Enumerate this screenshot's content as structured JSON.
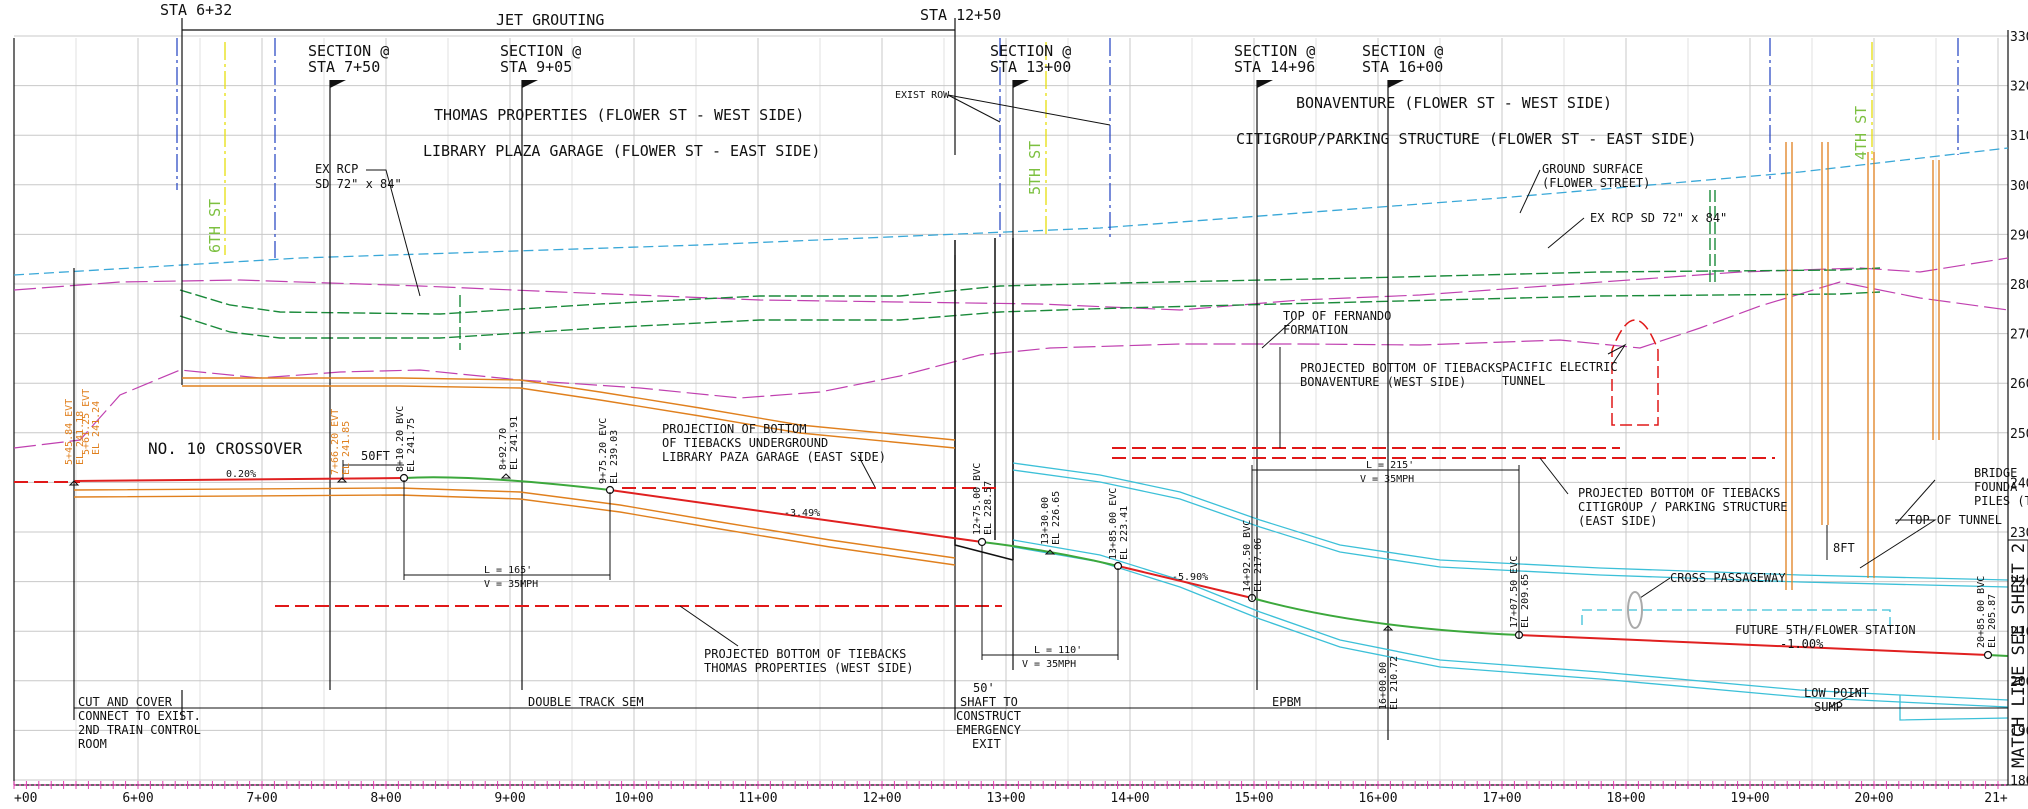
{
  "stations": {
    "tick_labels": [
      "+00",
      "6+00",
      "7+00",
      "8+00",
      "9+00",
      "10+00",
      "11+00",
      "12+00",
      "13+00",
      "14+00",
      "15+00",
      "16+00",
      "17+00",
      "18+00",
      "19+00",
      "20+00",
      "21+"
    ],
    "elevation_labels": [
      "330",
      "320",
      "310",
      "300",
      "290",
      "280",
      "270",
      "260",
      "250",
      "240",
      "230",
      "220",
      "210",
      "200",
      "190",
      "180"
    ]
  },
  "top_labels": {
    "sta_632": "STA 6+32",
    "jet_grouting": "JET GROUTING",
    "sta_1250": "STA 12+50",
    "section_750_a": "SECTION @",
    "section_750_b": "STA 7+50",
    "section_905_a": "SECTION @",
    "section_905_b": "STA 9+05",
    "section_1300_a": "SECTION @",
    "section_1300_b": "STA 13+00",
    "section_1496_a": "SECTION @",
    "section_1496_b": "STA 14+96",
    "section_1600_a": "SECTION @",
    "section_1600_b": "STA 16+00",
    "exist_row": "EXIST ROW"
  },
  "properties": {
    "thomas": "THOMAS PROPERTIES (FLOWER ST - WEST SIDE)",
    "library": "LIBRARY PLAZA GARAGE (FLOWER ST - EAST SIDE)",
    "bonaventure": "BONAVENTURE (FLOWER ST - WEST SIDE)",
    "citigroup": "CITIGROUP/PARKING STRUCTURE (FLOWER ST - EAST SIDE)"
  },
  "streets": {
    "sixth": "6TH ST",
    "fifth": "5TH ST",
    "fourth": "4TH ST"
  },
  "annotations": {
    "ex_rcp_left_a": "EX RCP",
    "ex_rcp_left_b": "SD 72\" x 84\"",
    "ex_rcp_right": "EX RCP SD 72\" x 84\"",
    "ground_a": "GROUND SURFACE",
    "ground_b": "(FLOWER STREET)",
    "fernando_a": "TOP OF FERNANDO",
    "fernando_b": "FORMATION",
    "tieback_bon_a": "PROJECTED BOTTOM OF TIEBACKS",
    "tieback_bon_b": "BONAVENTURE (WEST SIDE)",
    "pacific_a": "PACIFIC ELECTRIC",
    "pacific_b": "TUNNEL",
    "tieback_lib_a": "PROJECTION OF BOTTOM",
    "tieback_lib_b": "OF TIEBACKS UNDERGROUND",
    "tieback_lib_c": "LIBRARY PAZA GARAGE (EAST SIDE)",
    "tieback_citi_a": "PROJECTED BOTTOM OF TIEBACKS",
    "tieback_citi_b": "CITIGROUP / PARKING STRUCTURE",
    "tieback_citi_c": "(EAST SIDE)",
    "tieback_thomas_a": "PROJECTED BOTTOM OF TIEBACKS",
    "tieback_thomas_b": "THOMAS PROPERTIES (WEST SIDE)",
    "bridge_a": "BRIDGE",
    "bridge_b": "FOUNDA",
    "bridge_c": "PILES (T",
    "top_tunnel": "TOP OF TUNNEL",
    "eight_ft": "8FT",
    "cross_passage": "CROSS PASSAGEWAY",
    "future_station": "FUTURE 5TH/FLOWER STATION",
    "grade_right": "-1.00%",
    "low_point_a": "LOW POINT",
    "low_point_b": "SUMP",
    "match_line": "MATCH LINE SEE SHEET 2",
    "crossover": "NO. 10 CROSSOVER",
    "grade_020": "0.20%",
    "fifty_ft": "50FT",
    "grade_349": "-3.49%",
    "grade_590": "-5.90%",
    "vc_left_a": "L = 165'",
    "vc_left_b": "V = 35MPH",
    "vc_mid_a": "L = 110'",
    "vc_mid_b": "V = 35MPH",
    "vc_right_a": "L = 215'",
    "vc_right_b": "V = 35MPH"
  },
  "profile_points": {
    "p_54584": [
      "5+45.84 EVT",
      "EL 241.18"
    ],
    "p_56": [
      "5+61.25 EVT",
      "EL 241.24"
    ],
    "p_76620": [
      "7+66.20 EVT",
      "EL 241.85"
    ],
    "p_81020": [
      "8+10.20 BVC",
      "EL 241.75"
    ],
    "p_89270": [
      "8+92.70",
      "EL 241.91"
    ],
    "p_97520": [
      "9+75.20 EVC",
      "EL 239.03"
    ],
    "p_127500": [
      "12+75.00 BVC",
      "EL 228.57"
    ],
    "p_133000": [
      "13+30.00",
      "EL 226.65"
    ],
    "p_138500": [
      "13+85.00 EVC",
      "EL 223.41"
    ],
    "p_149250": [
      "14+92.50 BVC",
      "EL 217.06"
    ],
    "p_160000": [
      "16+00.00",
      "EL 210.72"
    ],
    "p_170750": [
      "17+07.50 EVC",
      "EL 209.65"
    ],
    "p_208500": [
      "20+85.00 BVC",
      "EL 205.87"
    ]
  },
  "bottom_labels": {
    "cut_a": "CUT AND COVER",
    "cut_b": "CONNECT TO EXIST.",
    "cut_c": "2ND TRAIN CONTROL",
    "cut_d": "ROOM",
    "double_track": "DOUBLE TRACK SEM",
    "shaft_a": "50'",
    "shaft_b": "SHAFT TO",
    "shaft_c": "CONSTRUCT",
    "shaft_d": "EMERGENCY",
    "shaft_e": "EXIT",
    "epbm": "EPBM"
  },
  "colors": {
    "grid": "#c8c8c8",
    "line": "#111111",
    "ground": "#3aa8d8",
    "drain": "#1a8a3a",
    "fernando": "#c040b0",
    "tieback": "#e01818",
    "profile_red": "#e02020",
    "profile_green": "#3ca83c",
    "orange": "#e0801e",
    "tunnel": "#3cc0d8",
    "street_yellow": "#e8e020",
    "street_green": "#7cc040",
    "blue_line": "#2040c0"
  }
}
